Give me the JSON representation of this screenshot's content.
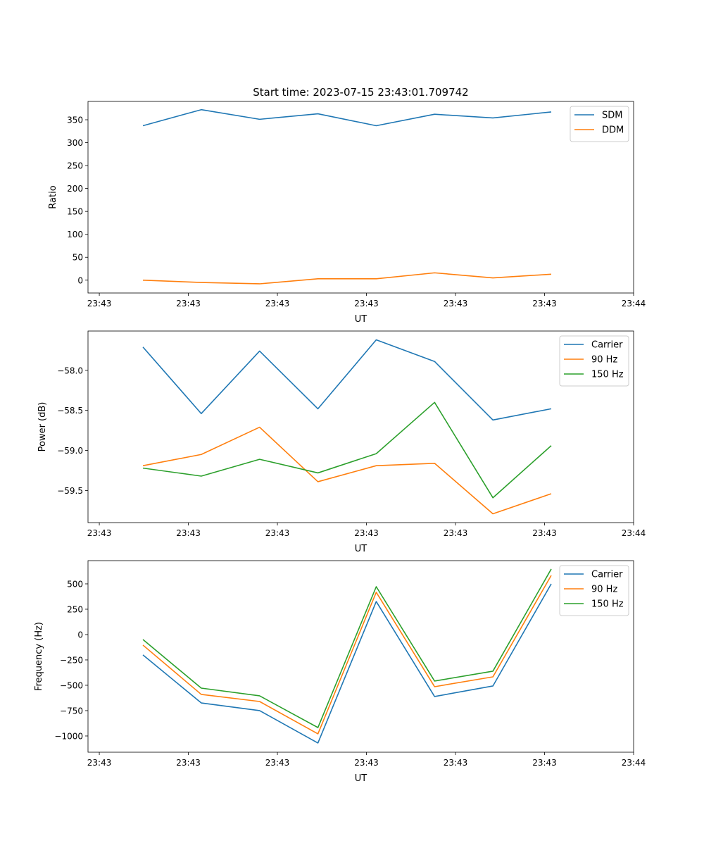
{
  "chart_data": [
    {
      "type": "line",
      "title": "Start time: 2023-07-15 23:43:01.709742",
      "xlabel": "UT",
      "ylabel": "Ratio",
      "x": [
        0.49,
        1.145,
        1.8,
        2.455,
        3.11,
        3.765,
        4.42,
        5.075
      ],
      "xlim": [
        -0.127,
        6.0
      ],
      "xticks": [
        0,
        1,
        2,
        3,
        4,
        5,
        6
      ],
      "xtick_labels": [
        "23:43",
        "23:43",
        "23:43",
        "23:43",
        "23:43",
        "23:43",
        "23:44"
      ],
      "ylim": [
        -28,
        390
      ],
      "yticks": [
        0,
        50,
        100,
        150,
        200,
        250,
        300,
        350
      ],
      "ytick_labels": [
        "0",
        "50",
        "100",
        "150",
        "200",
        "250",
        "300",
        "350"
      ],
      "legend": "top-right",
      "series": [
        {
          "name": "SDM",
          "color": "#1f77b4",
          "values": [
            337,
            372,
            351,
            363,
            337,
            362,
            354,
            367
          ]
        },
        {
          "name": "DDM",
          "color": "#ff7f0e",
          "values": [
            0,
            -5,
            -8,
            3,
            3,
            16,
            5,
            13
          ]
        }
      ]
    },
    {
      "type": "line",
      "title": "",
      "xlabel": "UT",
      "ylabel": "Power (dB)",
      "x": [
        0.49,
        1.145,
        1.8,
        2.455,
        3.11,
        3.765,
        4.42,
        5.075
      ],
      "xlim": [
        -0.127,
        6.0
      ],
      "xticks": [
        0,
        1,
        2,
        3,
        4,
        5,
        6
      ],
      "xtick_labels": [
        "23:43",
        "23:43",
        "23:43",
        "23:43",
        "23:43",
        "23:43",
        "23:44"
      ],
      "ylim": [
        -59.9,
        -57.51
      ],
      "yticks": [
        -58.0,
        -58.5,
        -59.0,
        -59.5
      ],
      "ytick_labels": [
        "−58.0",
        "−58.5",
        "−59.0",
        "−59.5"
      ],
      "legend": "top-right",
      "series": [
        {
          "name": "Carrier",
          "color": "#1f77b4",
          "values": [
            -57.71,
            -58.54,
            -57.76,
            -58.48,
            -57.62,
            -57.89,
            -58.62,
            -58.48
          ]
        },
        {
          "name": "90 Hz",
          "color": "#ff7f0e",
          "values": [
            -59.19,
            -59.05,
            -58.71,
            -59.39,
            -59.19,
            -59.16,
            -59.79,
            -59.54
          ]
        },
        {
          "name": "150 Hz",
          "color": "#2ca02c",
          "values": [
            -59.22,
            -59.32,
            -59.11,
            -59.28,
            -59.04,
            -58.4,
            -59.59,
            -58.94
          ]
        }
      ]
    },
    {
      "type": "line",
      "title": "",
      "xlabel": "UT",
      "ylabel": "Frequency (Hz)",
      "x": [
        0.49,
        1.145,
        1.8,
        2.455,
        3.11,
        3.765,
        4.42,
        5.075
      ],
      "xlim": [
        -0.127,
        6.0
      ],
      "xticks": [
        0,
        1,
        2,
        3,
        4,
        5,
        6
      ],
      "xtick_labels": [
        "23:43",
        "23:43",
        "23:43",
        "23:43",
        "23:43",
        "23:43",
        "23:44"
      ],
      "ylim": [
        -1160,
        729
      ],
      "yticks": [
        500,
        250,
        0,
        -250,
        -500,
        -750,
        -1000
      ],
      "ytick_labels": [
        "500",
        "250",
        "0",
        "−250",
        "−500",
        "−750",
        "−1000"
      ],
      "legend": "top-right",
      "series": [
        {
          "name": "Carrier",
          "color": "#1f77b4",
          "values": [
            -201,
            -674,
            -750,
            -1069,
            326,
            -611,
            -507,
            500
          ]
        },
        {
          "name": "90 Hz",
          "color": "#ff7f0e",
          "values": [
            -104,
            -590,
            -660,
            -979,
            417,
            -514,
            -417,
            583
          ]
        },
        {
          "name": "150 Hz",
          "color": "#2ca02c",
          "values": [
            -49,
            -528,
            -604,
            -917,
            472,
            -458,
            -361,
            646
          ]
        }
      ]
    }
  ]
}
